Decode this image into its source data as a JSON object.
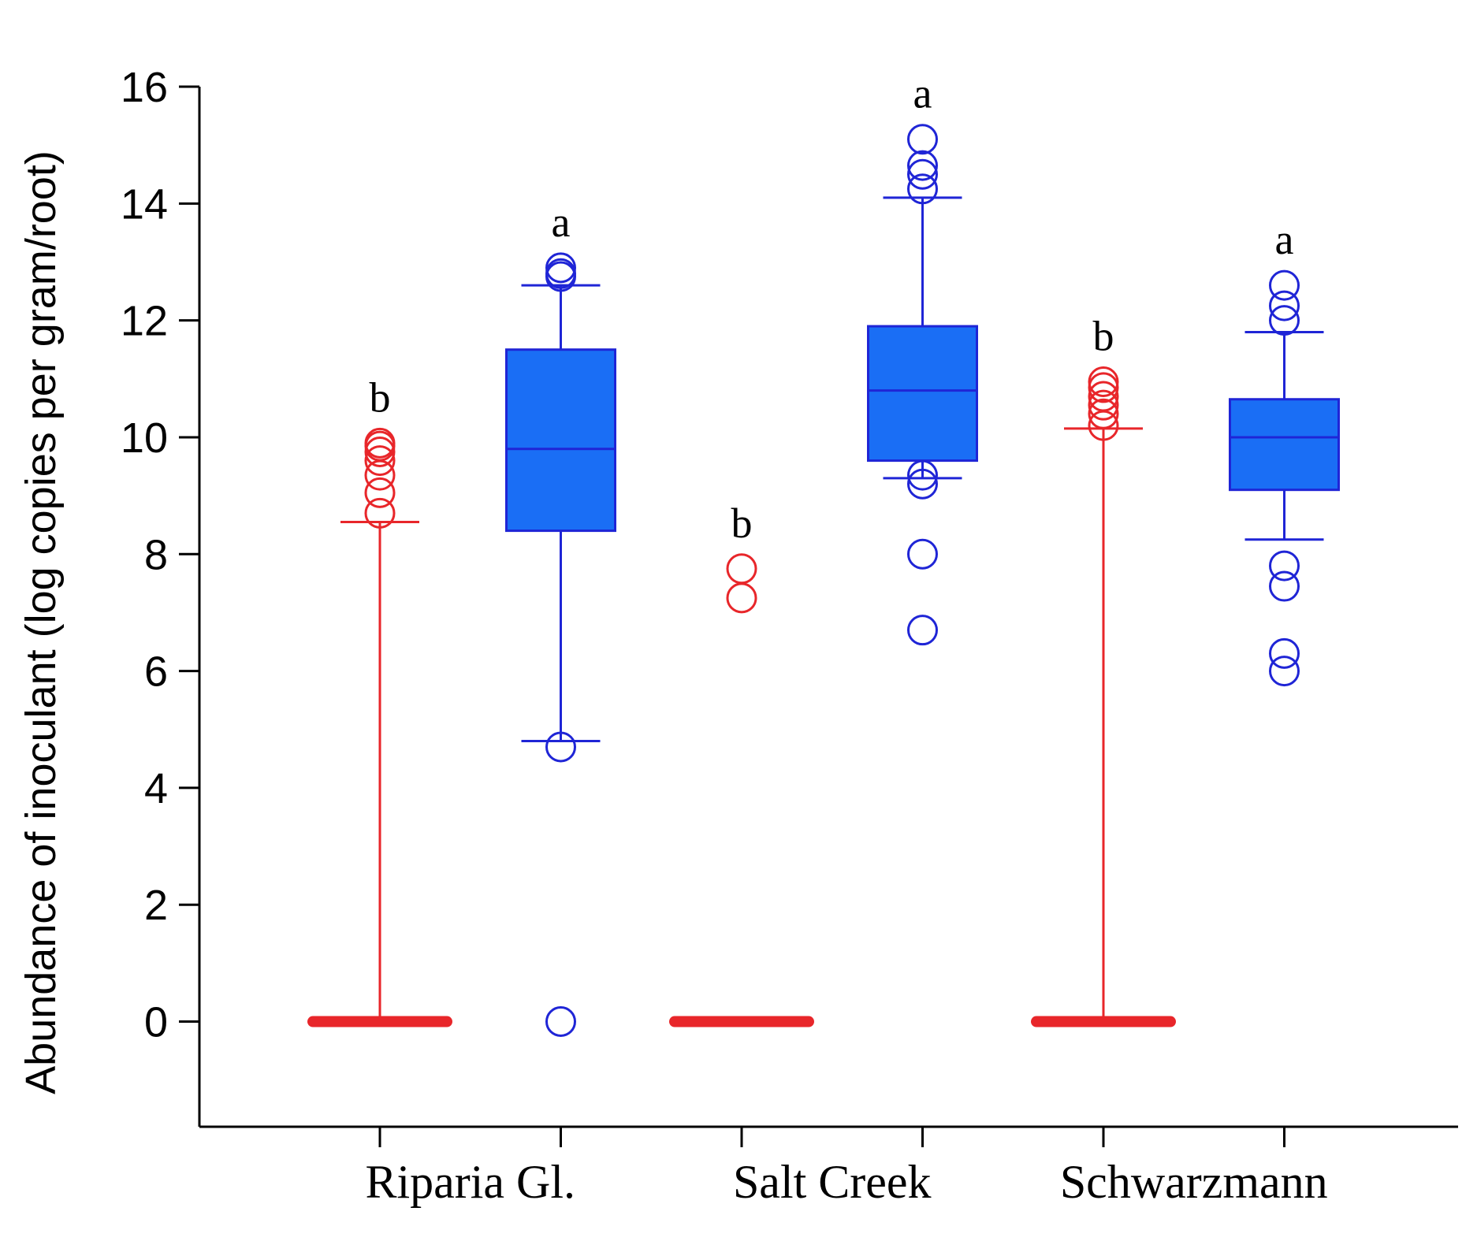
{
  "chart_data": {
    "type": "boxplot",
    "ylabel": "Abundance of inoculant (log copies per gram/root)",
    "xlabel": "",
    "ylim": [
      -1.8,
      16
    ],
    "yticks": [
      0,
      2,
      4,
      6,
      8,
      10,
      12,
      14,
      16
    ],
    "ytick_labels": [
      "0",
      "2",
      "4",
      "6",
      "8",
      "10",
      "12",
      "14",
      "16"
    ],
    "groups": [
      "Riparia Gl.",
      "Salt Creek",
      "Schwarzmann"
    ],
    "series": [
      {
        "name": "red",
        "color": "#e8262a"
      },
      {
        "name": "blue",
        "color": "#1f25d6",
        "fill": "#1a6ef5"
      }
    ],
    "boxes": [
      {
        "group": "Riparia Gl.",
        "series": "red",
        "letter": "b",
        "min": 0,
        "q1": 0,
        "median": 0,
        "q3": 0,
        "max": 8.55,
        "outliers": [
          8.7,
          9.05,
          9.35,
          9.6,
          9.75,
          9.85,
          9.9
        ]
      },
      {
        "group": "Riparia Gl.",
        "series": "blue",
        "letter": "a",
        "min": 4.8,
        "q1": 8.4,
        "median": 9.8,
        "q3": 11.5,
        "max": 12.6,
        "outliers": [
          0,
          4.7,
          12.75,
          12.8,
          12.9
        ]
      },
      {
        "group": "Salt Creek",
        "series": "red",
        "letter": "b",
        "min": 0,
        "q1": 0,
        "median": 0,
        "q3": 0,
        "max": 0,
        "outliers": [
          7.25,
          7.75
        ]
      },
      {
        "group": "Salt Creek",
        "series": "blue",
        "letter": "a",
        "min": 9.3,
        "q1": 9.6,
        "median": 10.8,
        "q3": 11.9,
        "max": 14.1,
        "outliers": [
          6.7,
          8.0,
          9.2,
          9.35,
          14.25,
          14.5,
          14.65,
          15.1
        ]
      },
      {
        "group": "Schwarzmann",
        "series": "red",
        "letter": "b",
        "min": 0,
        "q1": 0,
        "median": 0,
        "q3": 0,
        "max": 10.15,
        "outliers": [
          10.2,
          10.4,
          10.55,
          10.7,
          10.85,
          10.95
        ]
      },
      {
        "group": "Schwarzmann",
        "series": "blue",
        "letter": "a",
        "min": 8.25,
        "q1": 9.1,
        "median": 10.0,
        "q3": 10.65,
        "max": 11.8,
        "outliers": [
          6.0,
          6.3,
          7.45,
          7.8,
          12.0,
          12.25,
          12.6
        ]
      }
    ]
  }
}
